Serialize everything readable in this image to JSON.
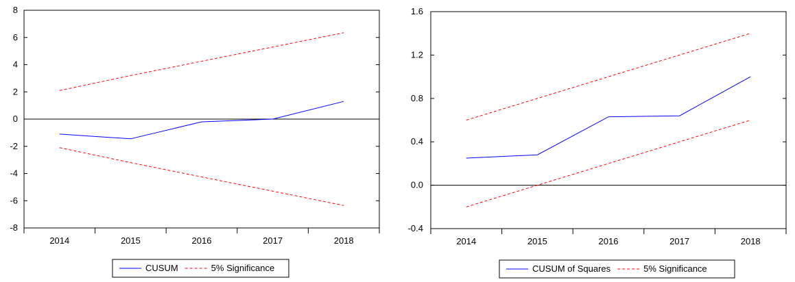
{
  "chart_data": [
    {
      "type": "line",
      "title": "",
      "xlabel": "",
      "ylabel": "",
      "x": [
        "2014",
        "2015",
        "2016",
        "2017",
        "2018"
      ],
      "ylim": [
        -8,
        8
      ],
      "yticks": [
        "8",
        "6",
        "4",
        "2",
        "0",
        "-2",
        "-4",
        "-6",
        "-8"
      ],
      "ytick_values": [
        8,
        6,
        4,
        2,
        0,
        -2,
        -4,
        -6,
        -8
      ],
      "zero_line": true,
      "legend_position": "bottom-center",
      "series": [
        {
          "name": "CUSUM",
          "values": [
            -1.1,
            -1.45,
            -0.2,
            0.0,
            1.3
          ],
          "color": "#0000ff",
          "style": "solid"
        },
        {
          "name": "5% Significance",
          "values": [
            2.1,
            3.2,
            4.25,
            5.3,
            6.35
          ],
          "color": "#ff0000",
          "style": "dashed"
        },
        {
          "name": "",
          "values": [
            -2.1,
            -3.2,
            -4.25,
            -5.3,
            -6.35
          ],
          "color": "#ff0000",
          "style": "dashed"
        }
      ],
      "legend": [
        "CUSUM",
        "5% Significance"
      ]
    },
    {
      "type": "line",
      "title": "",
      "xlabel": "",
      "ylabel": "",
      "x": [
        "2014",
        "2015",
        "2016",
        "2017",
        "2018"
      ],
      "ylim": [
        -0.4,
        1.6
      ],
      "yticks": [
        "1.6",
        "1.2",
        "0.8",
        "0.4",
        "0.0",
        "-0.4"
      ],
      "ytick_values": [
        1.6,
        1.2,
        0.8,
        0.4,
        0.0,
        -0.4
      ],
      "zero_line": true,
      "legend_position": "bottom-center",
      "series": [
        {
          "name": "CUSUM of Squares",
          "values": [
            0.25,
            0.28,
            0.63,
            0.64,
            1.0
          ],
          "color": "#0000ff",
          "style": "solid"
        },
        {
          "name": "5% Significance",
          "values": [
            0.6,
            0.8,
            1.0,
            1.2,
            1.4
          ],
          "color": "#ff0000",
          "style": "dashed"
        },
        {
          "name": "",
          "values": [
            -0.2,
            0.0,
            0.2,
            0.4,
            0.6
          ],
          "color": "#ff0000",
          "style": "dashed"
        }
      ],
      "legend": [
        "CUSUM of Squares",
        "5% Significance"
      ]
    }
  ]
}
